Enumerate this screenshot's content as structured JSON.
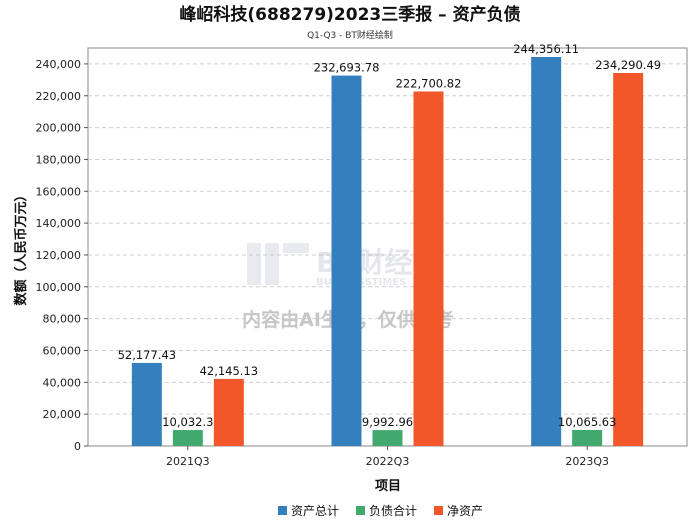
{
  "chart_data": {
    "type": "bar",
    "title": "峰岹科技(688279)2023三季报 – 资产负债",
    "subtitle": "Q1-Q3 - BT财经绘制",
    "xlabel": "项目",
    "ylabel": "数额（人民币万元）",
    "categories": [
      "2021Q3",
      "2022Q3",
      "2023Q3"
    ],
    "series": [
      {
        "name": "资产总计",
        "color": "#3480bf",
        "values": [
          52177.43,
          232693.78,
          244356.11
        ],
        "labels": [
          "52,177.43",
          "232,693.78",
          "244,356.11"
        ]
      },
      {
        "name": "负债合计",
        "color": "#42a96e",
        "values": [
          10032.3,
          9992.96,
          10065.63
        ],
        "labels": [
          "10,032.3",
          "9,992.96",
          "10,065.63"
        ]
      },
      {
        "name": "净资产",
        "color": "#f2572a",
        "values": [
          42145.13,
          222700.82,
          234290.49
        ],
        "labels": [
          "42,145.13",
          "222,700.82",
          "234,290.49"
        ]
      }
    ],
    "ylim": [
      0,
      250000
    ],
    "yticks": [
      0,
      20000,
      40000,
      60000,
      80000,
      100000,
      120000,
      140000,
      160000,
      180000,
      200000,
      220000,
      240000
    ],
    "ytick_labels": [
      "0",
      "20,000",
      "40,000",
      "60,000",
      "80,000",
      "100,000",
      "120,000",
      "140,000",
      "160,000",
      "180,000",
      "200,000",
      "220,000",
      "240,000"
    ],
    "grid": true,
    "legend_position": "bottom-center"
  },
  "watermark": {
    "brand": "BT财经",
    "brand_sub": "BUSINESSTIMES",
    "notice": "内容由AI生成，仅供参考"
  }
}
